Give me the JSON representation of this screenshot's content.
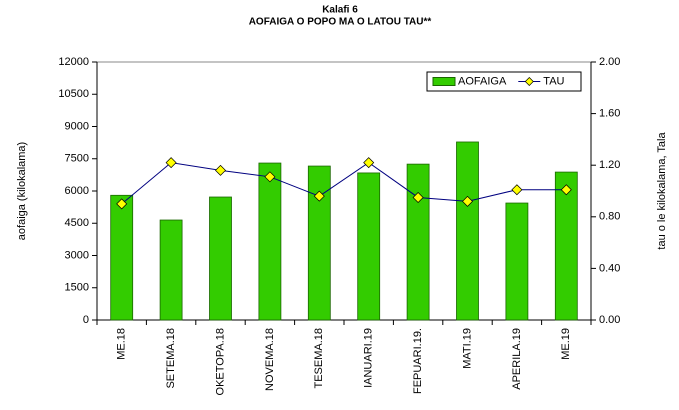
{
  "chart_data": {
    "type": "bar_line",
    "title": "Kalafi 6",
    "subtitle": "AOFAIGA O POPO MA O LATOU TAU**",
    "ylabel": "aofaiga (kilokalama)",
    "y2label": "tau o le kilokalama, Tala",
    "categories": [
      "ME.18",
      "SETEMA.18",
      "OKETOPA.18",
      "NOVEMA.18",
      "TESEMA.18",
      "IANUARI.19",
      "FEPUARI.19.",
      "MATI.19",
      "APERILA.19",
      "ME.19"
    ],
    "series": [
      {
        "name": "AOFAIGA",
        "type": "bar",
        "color": "#33cc00",
        "values": [
          5800,
          4650,
          5720,
          7300,
          7160,
          6840,
          7250,
          8280,
          5440,
          6880
        ]
      },
      {
        "name": "TAU",
        "type": "line",
        "axis": "y2",
        "color": "#000080",
        "marker_color": "#ffff00",
        "values": [
          0.9,
          1.22,
          1.16,
          1.11,
          0.96,
          1.22,
          0.95,
          0.92,
          1.01,
          1.01
        ]
      }
    ],
    "ylim": [
      0,
      12000
    ],
    "yticks": [
      0,
      1500,
      3000,
      4500,
      6000,
      7500,
      9000,
      10500,
      12000
    ],
    "y2lim": [
      0,
      2
    ],
    "y2ticks": [
      {
        "value": 0,
        "label": "0.00"
      },
      {
        "value": 0.4,
        "label": "0.40"
      },
      {
        "value": 0.8,
        "label": "0.80"
      },
      {
        "value": 1.2,
        "label": "1.20"
      },
      {
        "value": 1.6,
        "label": "1.60"
      },
      {
        "value": 2,
        "label": "2.00"
      }
    ],
    "legend": "upper right"
  }
}
